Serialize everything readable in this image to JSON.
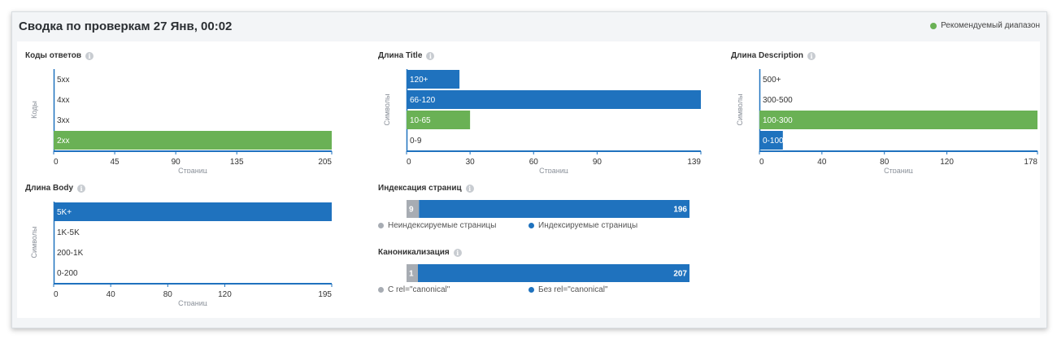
{
  "header": {
    "title": "Сводка по проверкам 27 Янв, 00:02",
    "legend_label": "Рекомендуемый диапазон"
  },
  "colors": {
    "blue": "#1f72be",
    "green": "#6ab155",
    "gray": "#a7acb3",
    "axis": "#1f72be"
  },
  "chart_data": [
    {
      "id": "codes",
      "type": "bar",
      "orientation": "horizontal",
      "title": "Коды ответов",
      "xlabel": "Страниц",
      "ylabel": "Коды",
      "categories": [
        "5xx",
        "4xx",
        "3xx",
        "2xx"
      ],
      "values": [
        0,
        0,
        0,
        205
      ],
      "highlight": [
        false,
        false,
        false,
        true
      ],
      "xlim": [
        0,
        205
      ],
      "xticks": [
        0,
        45,
        90,
        135,
        205
      ]
    },
    {
      "id": "title_len",
      "type": "bar",
      "orientation": "horizontal",
      "title": "Длина Title",
      "xlabel": "Страниц",
      "ylabel": "Символы",
      "categories": [
        "120+",
        "66-120",
        "10-65",
        "0-9"
      ],
      "values": [
        25,
        139,
        30,
        0
      ],
      "highlight": [
        false,
        false,
        true,
        false
      ],
      "xlim": [
        0,
        139
      ],
      "xticks": [
        0,
        30,
        60,
        90,
        139
      ]
    },
    {
      "id": "desc_len",
      "type": "bar",
      "orientation": "horizontal",
      "title": "Длина Description",
      "xlabel": "Страниц",
      "ylabel": "Символы",
      "categories": [
        "500+",
        "300-500",
        "100-300",
        "0-100"
      ],
      "values": [
        0,
        0,
        178,
        15
      ],
      "highlight": [
        false,
        false,
        true,
        false
      ],
      "xlim": [
        0,
        178
      ],
      "xticks": [
        0,
        40,
        80,
        120,
        178
      ]
    },
    {
      "id": "body_len",
      "type": "bar",
      "orientation": "horizontal",
      "title": "Длина Body",
      "xlabel": "Страниц",
      "ylabel": "Символы",
      "categories": [
        "5K+",
        "1K-5K",
        "200-1K",
        "0-200"
      ],
      "values": [
        195,
        0,
        0,
        0
      ],
      "highlight": [
        false,
        false,
        false,
        false
      ],
      "xlim": [
        0,
        195
      ],
      "xticks": [
        0,
        40,
        80,
        120,
        195
      ]
    },
    {
      "id": "indexing",
      "type": "bar",
      "orientation": "stacked",
      "title": "Индексация страниц",
      "series": [
        {
          "name": "Неиндексируемые страницы",
          "value": 9,
          "label": "9",
          "color": "#a7acb3"
        },
        {
          "name": "Индексируемые страницы",
          "value": 196,
          "label": "196",
          "color": "#1f72be"
        }
      ]
    },
    {
      "id": "canonical",
      "type": "bar",
      "orientation": "stacked",
      "title": "Каноникализация",
      "series": [
        {
          "name": "С rel=\"canonical\"",
          "value": 1,
          "label": "1",
          "color": "#a7acb3"
        },
        {
          "name": "Без rel=\"canonical\"",
          "value": 207,
          "label": "207",
          "color": "#1f72be"
        }
      ]
    }
  ]
}
